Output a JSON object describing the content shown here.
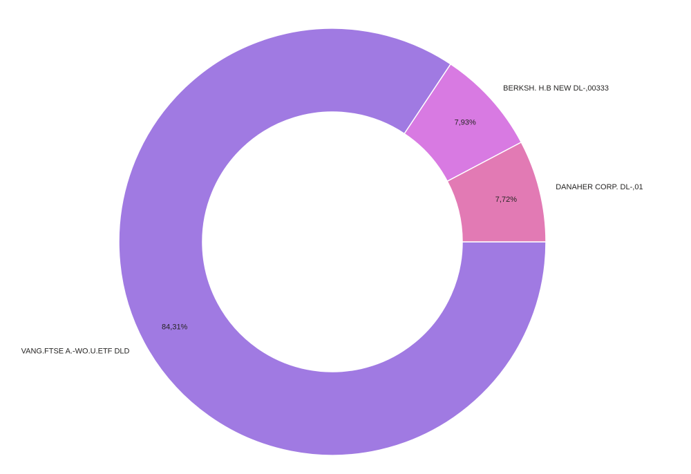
{
  "chart_data": {
    "type": "pie",
    "variant": "donut",
    "title": "",
    "categories": [
      "VANG.FTSE A.-WO.U.ETF DLD",
      "BERKSH. H.B NEW DL-,00333",
      "DANAHER CORP. DL-,01"
    ],
    "values": [
      84.31,
      7.93,
      7.72
    ],
    "value_labels": [
      "84,31%",
      "7,93%",
      "7,72%"
    ],
    "colors": [
      "#a07ae2",
      "#d87ae2",
      "#e27ab4"
    ],
    "legend": "none"
  }
}
